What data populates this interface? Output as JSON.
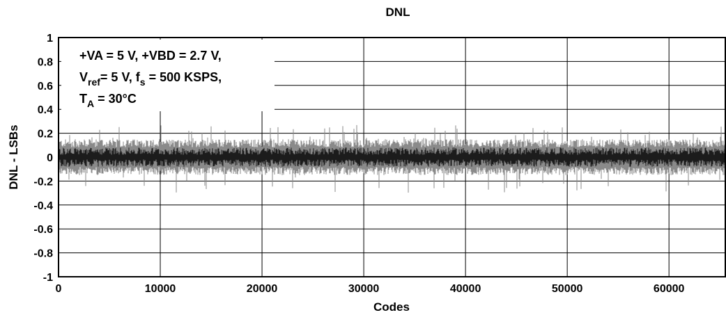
{
  "chart_data": {
    "type": "line",
    "title": "DNL",
    "xlabel": "Codes",
    "ylabel": "DNL - LSBs",
    "xlim": [
      0,
      65535
    ],
    "ylim": [
      -1,
      1
    ],
    "x_ticks": [
      "0",
      "10000",
      "20000",
      "30000",
      "40000",
      "50000",
      "60000"
    ],
    "y_ticks": [
      "1",
      "0.8",
      "0.6",
      "0.4",
      "0.2",
      "0",
      "-0.2",
      "-0.4",
      "-0.6",
      "-0.8",
      "-1"
    ],
    "grid": true,
    "annotation": {
      "line1": "+VA = 5 V, +VBD = 2.7 V,",
      "line2_main": "V",
      "line2_sub": "ref",
      "line2_rest": "= 5 V, f",
      "line2_sub2": "s",
      "line2_end": " = 500 KSPS,",
      "line3_main": "T",
      "line3_sub": "A",
      "line3_rest": " = 30°C"
    },
    "series_description": {
      "envelope_typical": [
        -0.15,
        0.15
      ],
      "envelope_peak": [
        -0.3,
        0.27
      ]
    },
    "colors": {
      "envelope": "#8a8a8a",
      "trace": "#000000",
      "grid": "#000000"
    }
  }
}
